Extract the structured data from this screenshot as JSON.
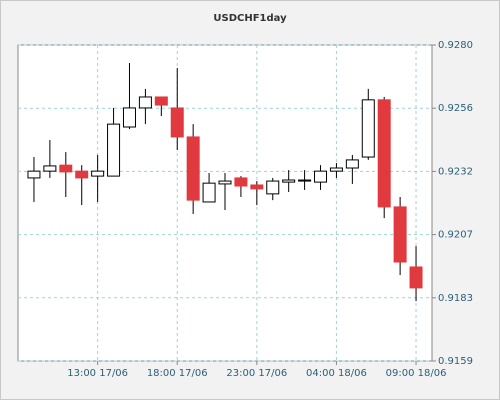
{
  "chart_data": {
    "type": "candlestick",
    "title": "USDCHF1day",
    "categories": [
      null,
      null,
      null,
      null,
      "13:00 17/06",
      null,
      null,
      null,
      null,
      "18:00 17/06",
      null,
      null,
      null,
      null,
      "23:00 17/06",
      null,
      null,
      null,
      null,
      "04:00 18/06",
      null,
      null,
      null,
      null,
      "09:00 18/06"
    ],
    "open": [
      0.92291,
      0.92317,
      0.9234,
      0.92317,
      0.92298,
      0.92298,
      0.92486,
      0.92559,
      0.92601,
      0.92559,
      0.92448,
      0.92199,
      0.92268,
      0.92291,
      0.92264,
      0.9223,
      0.92275,
      0.92279,
      0.92275,
      0.92317,
      0.92329,
      0.92371,
      0.9259,
      0.9218,
      0.9195
    ],
    "high": [
      0.92371,
      0.92436,
      0.9239,
      0.9234,
      0.92379,
      0.92559,
      0.92731,
      0.92632,
      0.92601,
      0.92712,
      0.92497,
      0.9231,
      0.9231,
      0.92298,
      0.92279,
      0.92291,
      0.92321,
      0.92321,
      0.9234,
      0.92348,
      0.92379,
      0.92632,
      0.92601,
      0.92218,
      0.9203
    ],
    "low": [
      0.92199,
      0.92291,
      0.92218,
      0.92187,
      0.92199,
      0.92298,
      0.92478,
      0.92497,
      0.92528,
      0.92398,
      0.92153,
      0.92199,
      0.92168,
      0.92218,
      0.92187,
      0.92206,
      0.92237,
      0.92245,
      0.92245,
      0.92291,
      0.92268,
      0.9236,
      0.92137,
      0.91919,
      0.91819
    ],
    "close": [
      0.92317,
      0.92337,
      0.92314,
      0.92291,
      0.92317,
      0.92497,
      0.92559,
      0.92601,
      0.9257,
      0.92448,
      0.92206,
      0.92271,
      0.92279,
      0.9226,
      0.92249,
      0.92279,
      0.92283,
      0.92283,
      0.92317,
      0.92329,
      0.9236,
      0.9259,
      0.9218,
      0.91969,
      0.9187
    ],
    "up_color": "#ffffff",
    "down_color": "#e0393e",
    "ylim": [
      0.9159,
      0.928
    ],
    "yticks": [
      {
        "value": 0.9159,
        "label": "0.9159"
      },
      {
        "value": 0.91832,
        "label": "0.9183"
      },
      {
        "value": 0.92074,
        "label": "0.9207"
      },
      {
        "value": 0.92316,
        "label": "0.9232"
      },
      {
        "value": 0.92558,
        "label": "0.9256"
      },
      {
        "value": 0.928,
        "label": "0.9280"
      }
    ],
    "grid": true
  }
}
